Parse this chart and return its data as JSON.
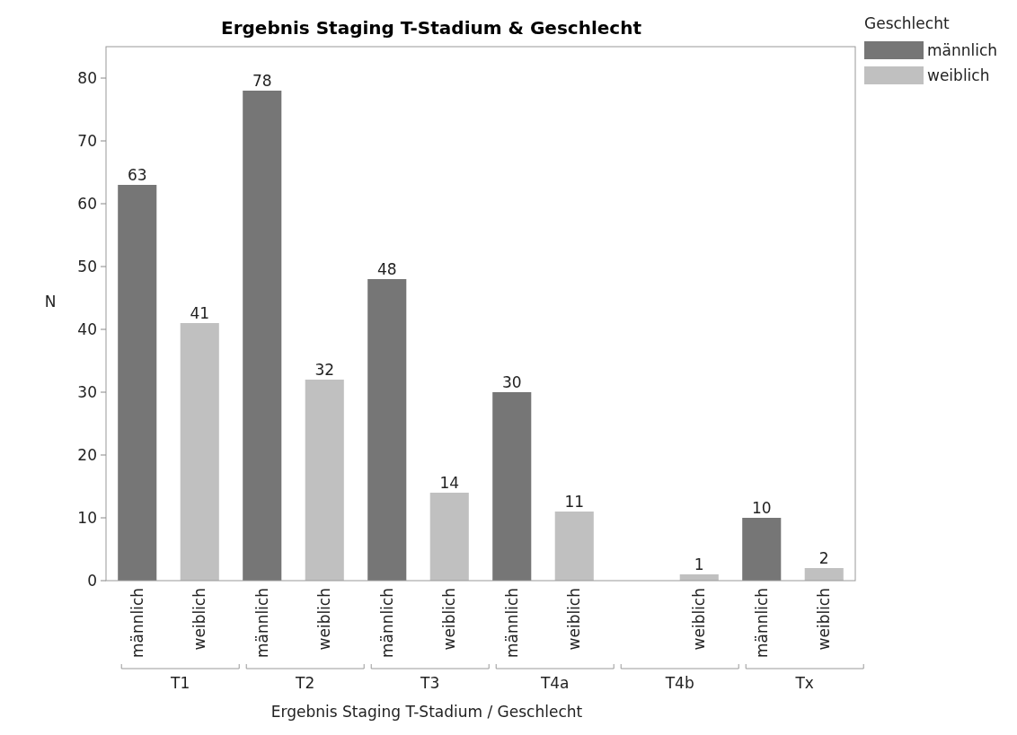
{
  "chart_data": {
    "type": "bar",
    "title": "Ergebnis Staging T-Stadium & Geschlecht",
    "xlabel": "Ergebnis Staging T-Stadium / Geschlecht",
    "ylabel": "N",
    "legend_title": "Geschlecht",
    "categories": [
      "T1",
      "T2",
      "T3",
      "T4a",
      "T4b",
      "Tx"
    ],
    "series": [
      {
        "name": "männlich",
        "color": "#767676",
        "values": [
          63,
          78,
          48,
          30,
          null,
          10
        ]
      },
      {
        "name": "weiblich",
        "color": "#c0c0c0",
        "values": [
          41,
          32,
          14,
          11,
          1,
          2
        ]
      }
    ],
    "ylim": [
      0,
      85
    ],
    "yticks": [
      0,
      10,
      20,
      30,
      40,
      50,
      60,
      70,
      80
    ],
    "data_labels": true,
    "legend": "top right",
    "grid": false
  }
}
